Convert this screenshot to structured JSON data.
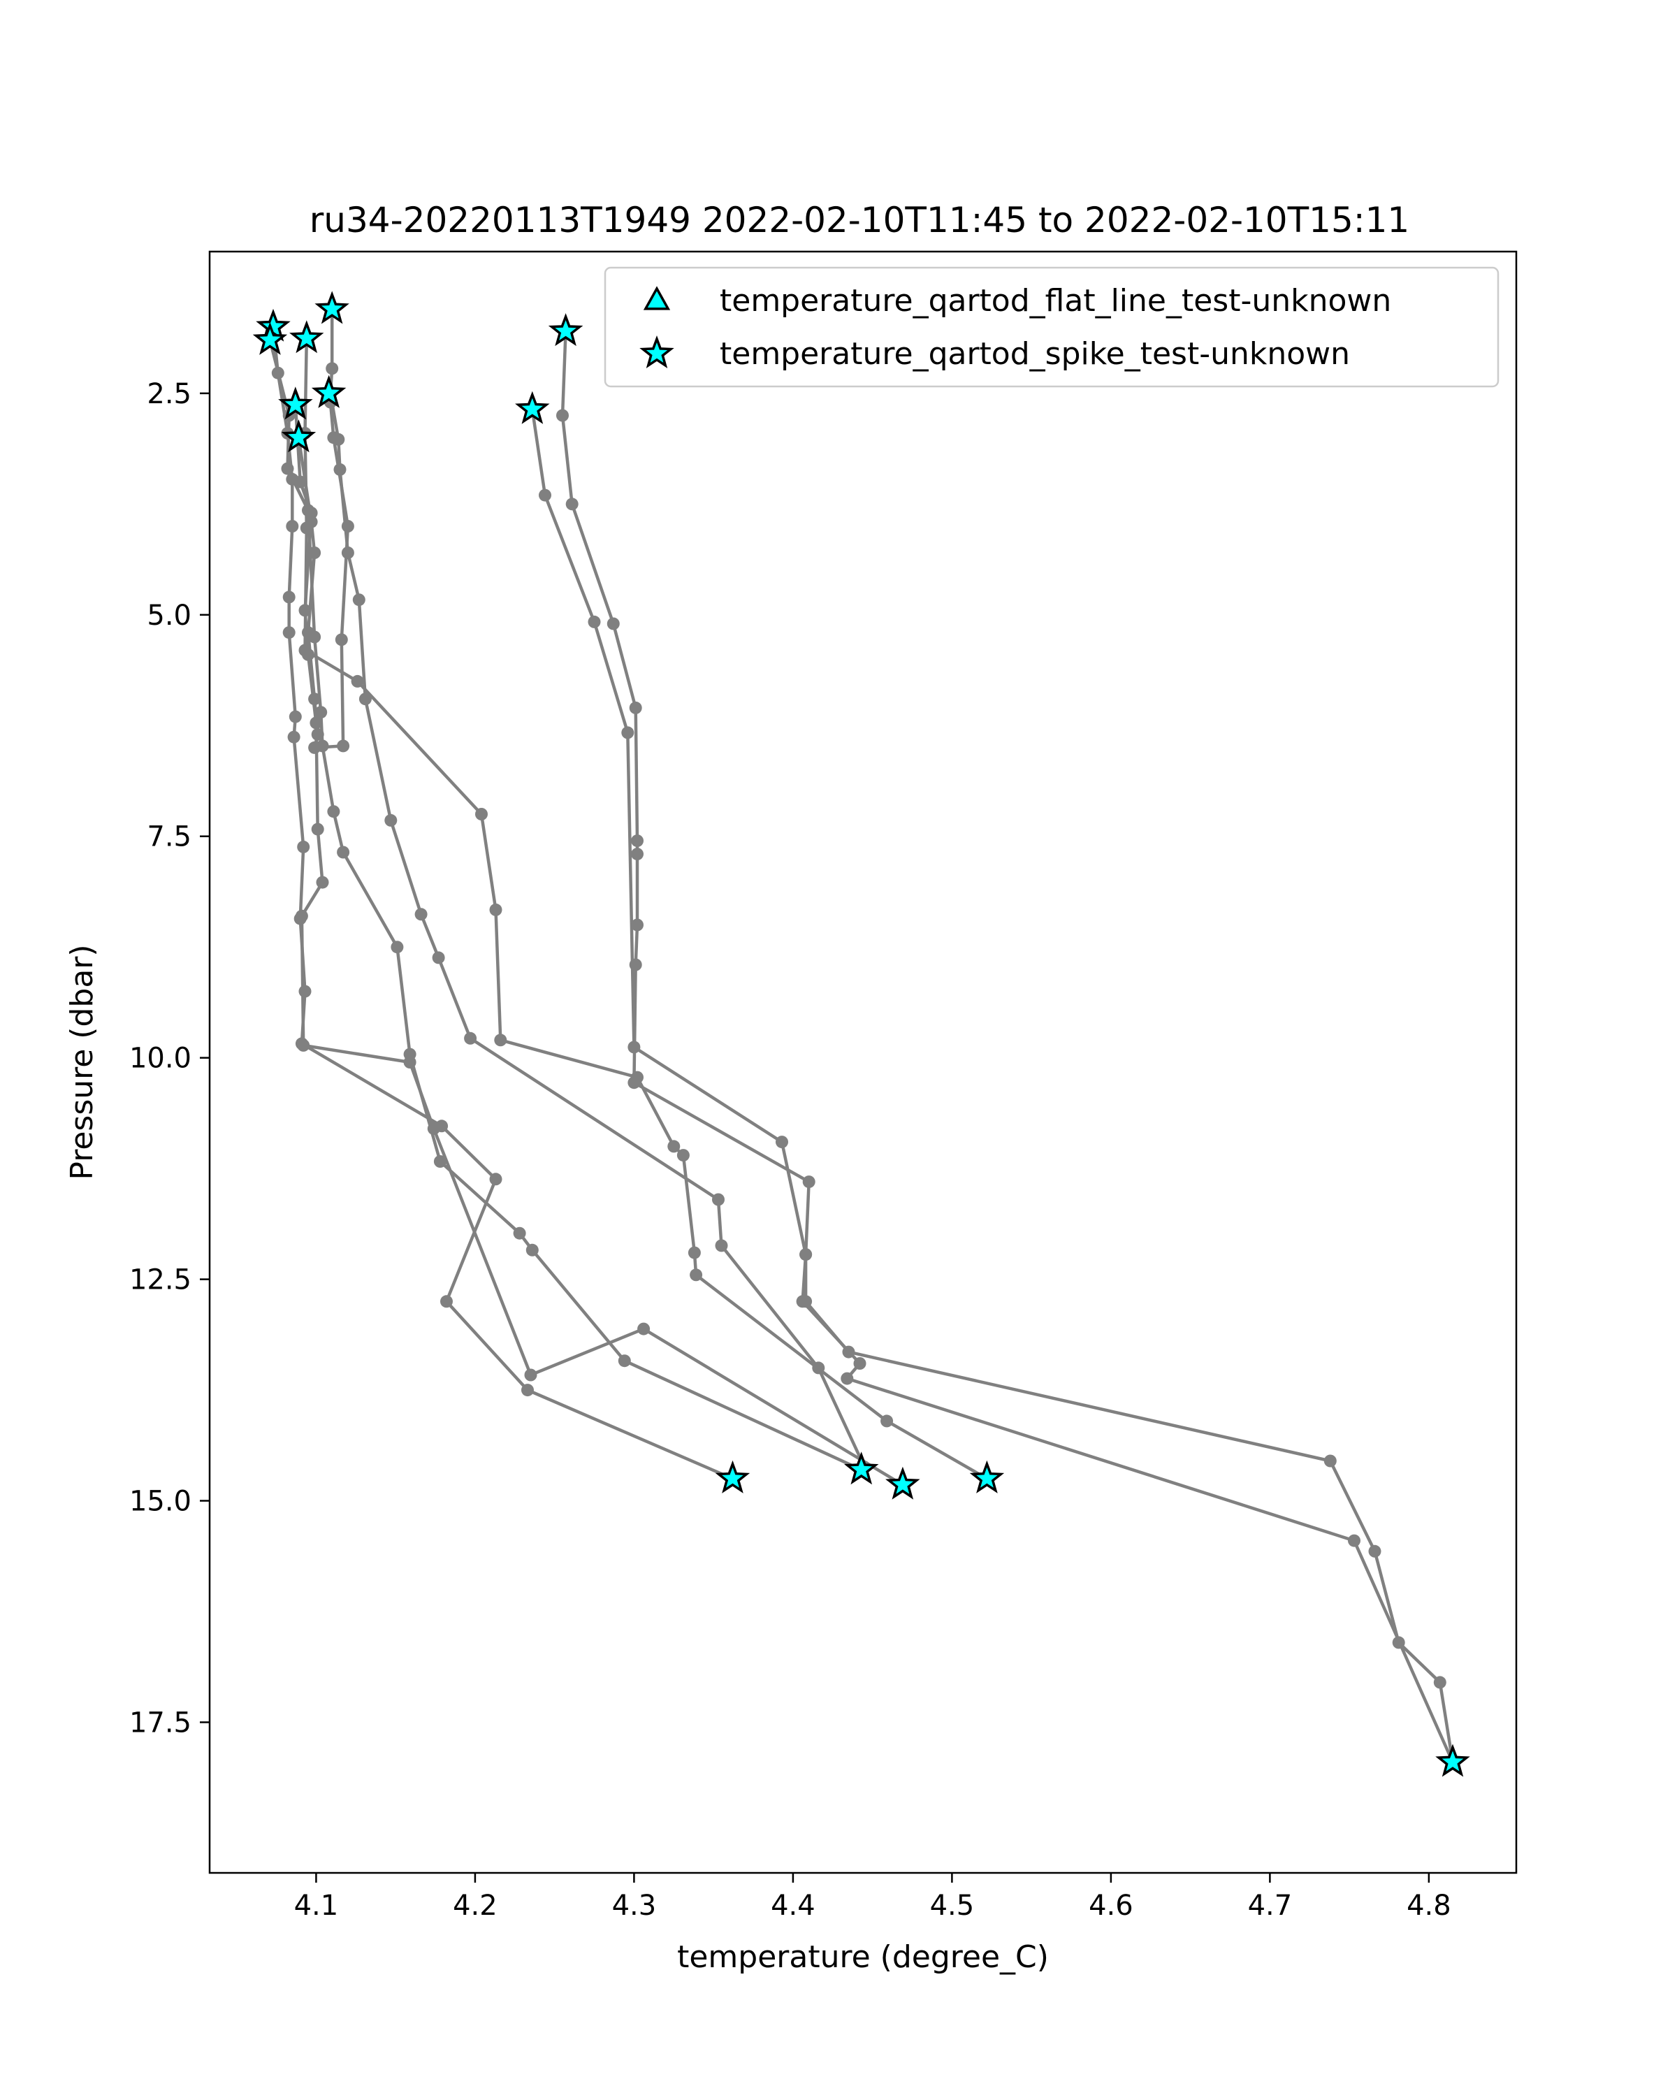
{
  "chart_data": {
    "type": "line",
    "title": "ru34-20220113T1949 2022-02-10T11:45 to 2022-02-10T15:11",
    "xlabel": "temperature (degree_C)",
    "ylabel": "Pressure (dbar)",
    "xlim": [
      4.033,
      4.855
    ],
    "ylim": [
      19.2,
      0.9
    ],
    "y_inverted": true,
    "grid": false,
    "x_ticks": [
      "4.1",
      "4.2",
      "4.3",
      "4.4",
      "4.5",
      "4.6",
      "4.7",
      "4.8"
    ],
    "y_ticks": [
      "2.5",
      "5.0",
      "7.5",
      "10.0",
      "12.5",
      "15.0",
      "17.5"
    ],
    "legend": {
      "placement": "upper right",
      "entries": [
        {
          "label": "temperature_qartod_flat_line_test-unknown",
          "marker": "triangle",
          "color": "#00ffff"
        },
        {
          "label": "temperature_qartod_spike_test-unknown",
          "marker": "star",
          "color": "#00ffff"
        }
      ]
    },
    "series": [
      {
        "color": "#808080",
        "points": [
          [
            4.073,
            1.75
          ],
          [
            4.076,
            2.27
          ],
          [
            4.082,
            2.95
          ],
          [
            4.085,
            3.47
          ],
          [
            4.085,
            4.0
          ],
          [
            4.083,
            4.8
          ],
          [
            4.083,
            5.2
          ],
          [
            4.087,
            6.15
          ],
          [
            4.086,
            6.38
          ],
          [
            4.092,
            7.62
          ],
          [
            4.09,
            8.43
          ],
          [
            4.093,
            9.25
          ],
          [
            4.091,
            9.84
          ],
          [
            4.179,
            10.77
          ],
          [
            4.213,
            11.37
          ],
          [
            4.182,
            12.75
          ],
          [
            4.233,
            13.75
          ],
          [
            4.362,
            14.75
          ]
        ]
      },
      {
        "color": "#808080",
        "points": [
          [
            4.071,
            1.9
          ],
          [
            4.083,
            2.75
          ],
          [
            4.082,
            3.35
          ],
          [
            4.095,
            3.82
          ],
          [
            4.099,
            5.25
          ],
          [
            4.103,
            6.1
          ],
          [
            4.104,
            6.48
          ],
          [
            4.111,
            7.22
          ],
          [
            4.117,
            7.68
          ],
          [
            4.151,
            8.75
          ],
          [
            4.159,
            9.96
          ],
          [
            4.178,
            11.17
          ],
          [
            4.228,
            11.98
          ],
          [
            4.236,
            12.17
          ],
          [
            4.294,
            13.42
          ],
          [
            4.443,
            14.65
          ]
        ]
      },
      {
        "color": "#808080",
        "points": [
          [
            4.094,
            1.88
          ],
          [
            4.093,
            2.95
          ],
          [
            4.094,
            4.02
          ],
          [
            4.093,
            5.4
          ],
          [
            4.126,
            5.75
          ],
          [
            4.204,
            7.25
          ],
          [
            4.213,
            8.33
          ],
          [
            4.216,
            9.8
          ],
          [
            4.302,
            10.22
          ],
          [
            4.325,
            11.0
          ],
          [
            4.331,
            11.1
          ],
          [
            4.338,
            12.2
          ],
          [
            4.339,
            12.45
          ],
          [
            4.459,
            14.1
          ],
          [
            4.522,
            14.75
          ]
        ]
      },
      {
        "color": "#808080",
        "points": [
          [
            4.11,
            1.55
          ],
          [
            4.11,
            2.22
          ],
          [
            4.109,
            2.5
          ],
          [
            4.114,
            3.02
          ],
          [
            4.115,
            3.36
          ],
          [
            4.12,
            4.3
          ],
          [
            4.127,
            4.83
          ],
          [
            4.131,
            5.95
          ],
          [
            4.147,
            7.32
          ],
          [
            4.166,
            8.38
          ],
          [
            4.177,
            8.87
          ],
          [
            4.197,
            9.78
          ],
          [
            4.353,
            11.6
          ],
          [
            4.355,
            12.12
          ],
          [
            4.416,
            13.5
          ],
          [
            4.445,
            14.62
          ]
        ]
      },
      {
        "color": "#808080",
        "points": [
          [
            4.087,
            2.63
          ],
          [
            4.09,
            3.5
          ],
          [
            4.097,
            3.85
          ],
          [
            4.093,
            4.95
          ],
          [
            4.095,
            5.45
          ],
          [
            4.1,
            6.22
          ],
          [
            4.101,
            7.42
          ],
          [
            4.104,
            8.02
          ],
          [
            4.091,
            8.4
          ],
          [
            4.092,
            9.86
          ],
          [
            4.159,
            10.05
          ],
          [
            4.174,
            10.8
          ],
          [
            4.235,
            13.58
          ],
          [
            4.306,
            13.06
          ],
          [
            4.469,
            14.82
          ]
        ]
      },
      {
        "color": "#808080",
        "points": [
          [
            4.089,
            3.0
          ],
          [
            4.097,
            3.95
          ],
          [
            4.099,
            4.3
          ],
          [
            4.095,
            5.2
          ],
          [
            4.099,
            5.95
          ],
          [
            4.101,
            6.35
          ],
          [
            4.099,
            6.5
          ],
          [
            4.117,
            6.48
          ],
          [
            4.116,
            5.28
          ],
          [
            4.12,
            4.0
          ],
          [
            4.111,
            3.0
          ],
          [
            4.109,
            2.6
          ],
          [
            4.108,
            2.5
          ]
        ]
      },
      {
        "color": "#808080",
        "points": [
          [
            4.257,
            1.8
          ],
          [
            4.255,
            2.75
          ],
          [
            4.261,
            3.75
          ],
          [
            4.287,
            5.1
          ],
          [
            4.301,
            6.05
          ],
          [
            4.302,
            7.55
          ],
          [
            4.302,
            7.7
          ],
          [
            4.302,
            8.5
          ],
          [
            4.301,
            8.95
          ],
          [
            4.3,
            10.28
          ],
          [
            4.41,
            11.4
          ],
          [
            4.408,
            12.22
          ],
          [
            4.408,
            12.75
          ],
          [
            4.435,
            13.32
          ],
          [
            4.738,
            14.55
          ],
          [
            4.766,
            15.57
          ],
          [
            4.781,
            16.6
          ],
          [
            4.807,
            17.05
          ],
          [
            4.815,
            17.95
          ]
        ]
      },
      {
        "color": "#808080",
        "points": [
          [
            4.236,
            2.68
          ],
          [
            4.244,
            3.65
          ],
          [
            4.275,
            5.08
          ],
          [
            4.296,
            6.33
          ],
          [
            4.3,
            9.88
          ],
          [
            4.393,
            10.95
          ],
          [
            4.408,
            12.22
          ],
          [
            4.406,
            12.75
          ],
          [
            4.442,
            13.45
          ],
          [
            4.434,
            13.62
          ],
          [
            4.753,
            15.45
          ],
          [
            4.815,
            17.95
          ]
        ]
      }
    ],
    "flags": {
      "temperature_qartod_spike_test-unknown": [
        [
          4.073,
          1.75
        ],
        [
          4.071,
          1.9
        ],
        [
          4.094,
          1.88
        ],
        [
          4.11,
          1.55
        ],
        [
          4.257,
          1.8
        ],
        [
          4.087,
          2.63
        ],
        [
          4.108,
          2.5
        ],
        [
          4.089,
          3.0
        ],
        [
          4.236,
          2.68
        ],
        [
          4.362,
          14.75
        ],
        [
          4.443,
          14.65
        ],
        [
          4.469,
          14.82
        ],
        [
          4.522,
          14.75
        ],
        [
          4.815,
          17.95
        ]
      ],
      "temperature_qartod_flat_line_test-unknown": []
    }
  }
}
